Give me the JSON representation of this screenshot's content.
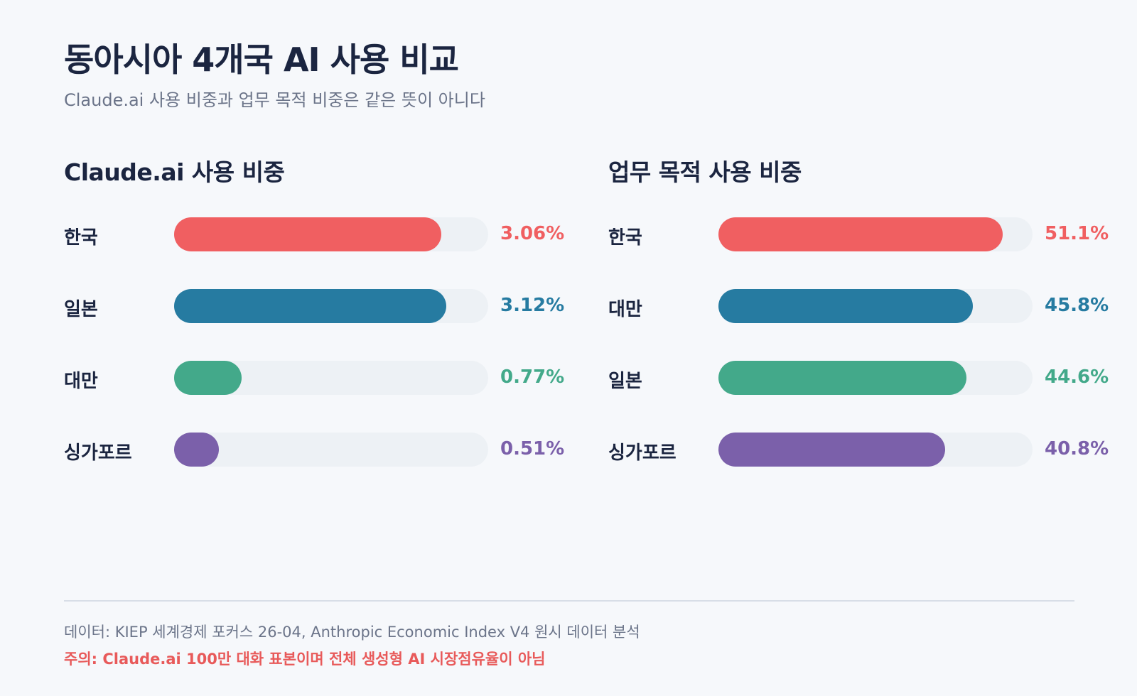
{
  "header": {
    "title": "동아시아 4개국 AI 사용 비교",
    "subtitle": "Claude.ai 사용 비중과 업무 목적 비중은 같은 뜻이 아니다"
  },
  "colors": {
    "korea": "#f05f61",
    "japan": "#267ba1",
    "taiwan": "#43a98a",
    "singapore": "#7b60aa",
    "track": "#edf1f5"
  },
  "chart_data": [
    {
      "type": "bar",
      "orientation": "horizontal",
      "title": "Claude.ai 사용 비중",
      "categories": [
        "한국",
        "일본",
        "대만",
        "싱가포르"
      ],
      "values": [
        3.06,
        3.12,
        0.77,
        0.51
      ],
      "value_labels": [
        "3.06%",
        "3.12%",
        "0.77%",
        "0.51%"
      ],
      "colors": [
        "#f05f61",
        "#267ba1",
        "#43a98a",
        "#7b60aa"
      ],
      "xlim": [
        0,
        3.6
      ]
    },
    {
      "type": "bar",
      "orientation": "horizontal",
      "title": "업무 목적 사용 비중",
      "categories": [
        "한국",
        "대만",
        "일본",
        "싱가포르"
      ],
      "values": [
        51.1,
        45.8,
        44.6,
        40.8
      ],
      "value_labels": [
        "51.1%",
        "45.8%",
        "44.6%",
        "40.8%"
      ],
      "colors": [
        "#f05f61",
        "#267ba1",
        "#43a98a",
        "#7b60aa"
      ],
      "xlim": [
        0,
        56.5
      ]
    }
  ],
  "footer": {
    "source": "데이터: KIEP 세계경제 포커스 26-04, Anthropic Economic Index V4 원시 데이터 분석",
    "note": "주의: Claude.ai 100만 대화 표본이며 전체 생성형 AI 시장점유율이 아님"
  }
}
